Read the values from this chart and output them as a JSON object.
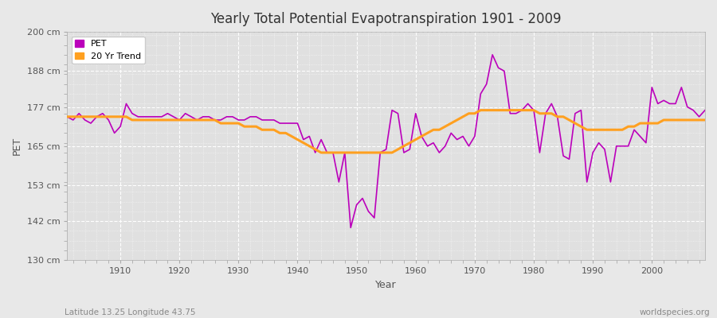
{
  "title": "Yearly Total Potential Evapotranspiration 1901 - 2009",
  "xlabel": "Year",
  "ylabel": "PET",
  "bottom_left_label": "Latitude 13.25 Longitude 43.75",
  "bottom_right_label": "worldspecies.org",
  "background_color": "#e8e8e8",
  "plot_bg_color": "#e0e0e0",
  "grid_color": "#ffffff",
  "pet_color": "#bb00bb",
  "trend_color": "#ffa020",
  "ylim": [
    130,
    200
  ],
  "yticks": [
    130,
    142,
    153,
    165,
    177,
    188,
    200
  ],
  "ytick_labels": [
    "130 cm",
    "142 cm",
    "153 cm",
    "165 cm",
    "177 cm",
    "188 cm",
    "200 cm"
  ],
  "xlim": [
    1901,
    2009
  ],
  "years": [
    1901,
    1902,
    1903,
    1904,
    1905,
    1906,
    1907,
    1908,
    1909,
    1910,
    1911,
    1912,
    1913,
    1914,
    1915,
    1916,
    1917,
    1918,
    1919,
    1920,
    1921,
    1922,
    1923,
    1924,
    1925,
    1926,
    1927,
    1928,
    1929,
    1930,
    1931,
    1932,
    1933,
    1934,
    1935,
    1936,
    1937,
    1938,
    1939,
    1940,
    1941,
    1942,
    1943,
    1944,
    1945,
    1946,
    1947,
    1948,
    1949,
    1950,
    1951,
    1952,
    1953,
    1954,
    1955,
    1956,
    1957,
    1958,
    1959,
    1960,
    1961,
    1962,
    1963,
    1964,
    1965,
    1966,
    1967,
    1968,
    1969,
    1970,
    1971,
    1972,
    1973,
    1974,
    1975,
    1976,
    1977,
    1978,
    1979,
    1980,
    1981,
    1982,
    1983,
    1984,
    1985,
    1986,
    1987,
    1988,
    1989,
    1990,
    1991,
    1992,
    1993,
    1994,
    1995,
    1996,
    1997,
    1998,
    1999,
    2000,
    2001,
    2002,
    2003,
    2004,
    2005,
    2006,
    2007,
    2008,
    2009
  ],
  "pet_values": [
    174,
    173,
    175,
    173,
    172,
    174,
    175,
    173,
    169,
    171,
    178,
    175,
    174,
    174,
    174,
    174,
    174,
    175,
    174,
    173,
    175,
    174,
    173,
    174,
    174,
    173,
    173,
    174,
    174,
    173,
    173,
    174,
    174,
    173,
    173,
    173,
    172,
    172,
    172,
    172,
    167,
    168,
    163,
    167,
    163,
    163,
    154,
    163,
    140,
    147,
    149,
    145,
    143,
    163,
    164,
    176,
    175,
    163,
    164,
    175,
    168,
    165,
    166,
    163,
    165,
    169,
    167,
    168,
    165,
    168,
    181,
    184,
    193,
    189,
    188,
    175,
    175,
    176,
    178,
    176,
    163,
    175,
    178,
    174,
    162,
    161,
    175,
    176,
    154,
    163,
    166,
    164,
    154,
    165,
    165,
    165,
    170,
    168,
    166,
    183,
    178,
    179,
    178,
    178,
    183,
    177,
    176,
    174,
    176
  ],
  "trend_values": [
    174,
    174,
    174,
    174,
    174,
    174,
    174,
    174,
    174,
    174,
    174,
    173,
    173,
    173,
    173,
    173,
    173,
    173,
    173,
    173,
    173,
    173,
    173,
    173,
    173,
    173,
    172,
    172,
    172,
    172,
    171,
    171,
    171,
    170,
    170,
    170,
    169,
    169,
    168,
    167,
    166,
    165,
    164,
    163,
    163,
    163,
    163,
    163,
    163,
    163,
    163,
    163,
    163,
    163,
    163,
    163,
    164,
    165,
    166,
    167,
    168,
    169,
    170,
    170,
    171,
    172,
    173,
    174,
    175,
    175,
    176,
    176,
    176,
    176,
    176,
    176,
    176,
    176,
    176,
    176,
    175,
    175,
    175,
    174,
    174,
    173,
    172,
    171,
    170,
    170,
    170,
    170,
    170,
    170,
    170,
    171,
    171,
    172,
    172,
    172,
    172,
    173,
    173,
    173,
    173,
    173,
    173,
    173,
    173
  ]
}
